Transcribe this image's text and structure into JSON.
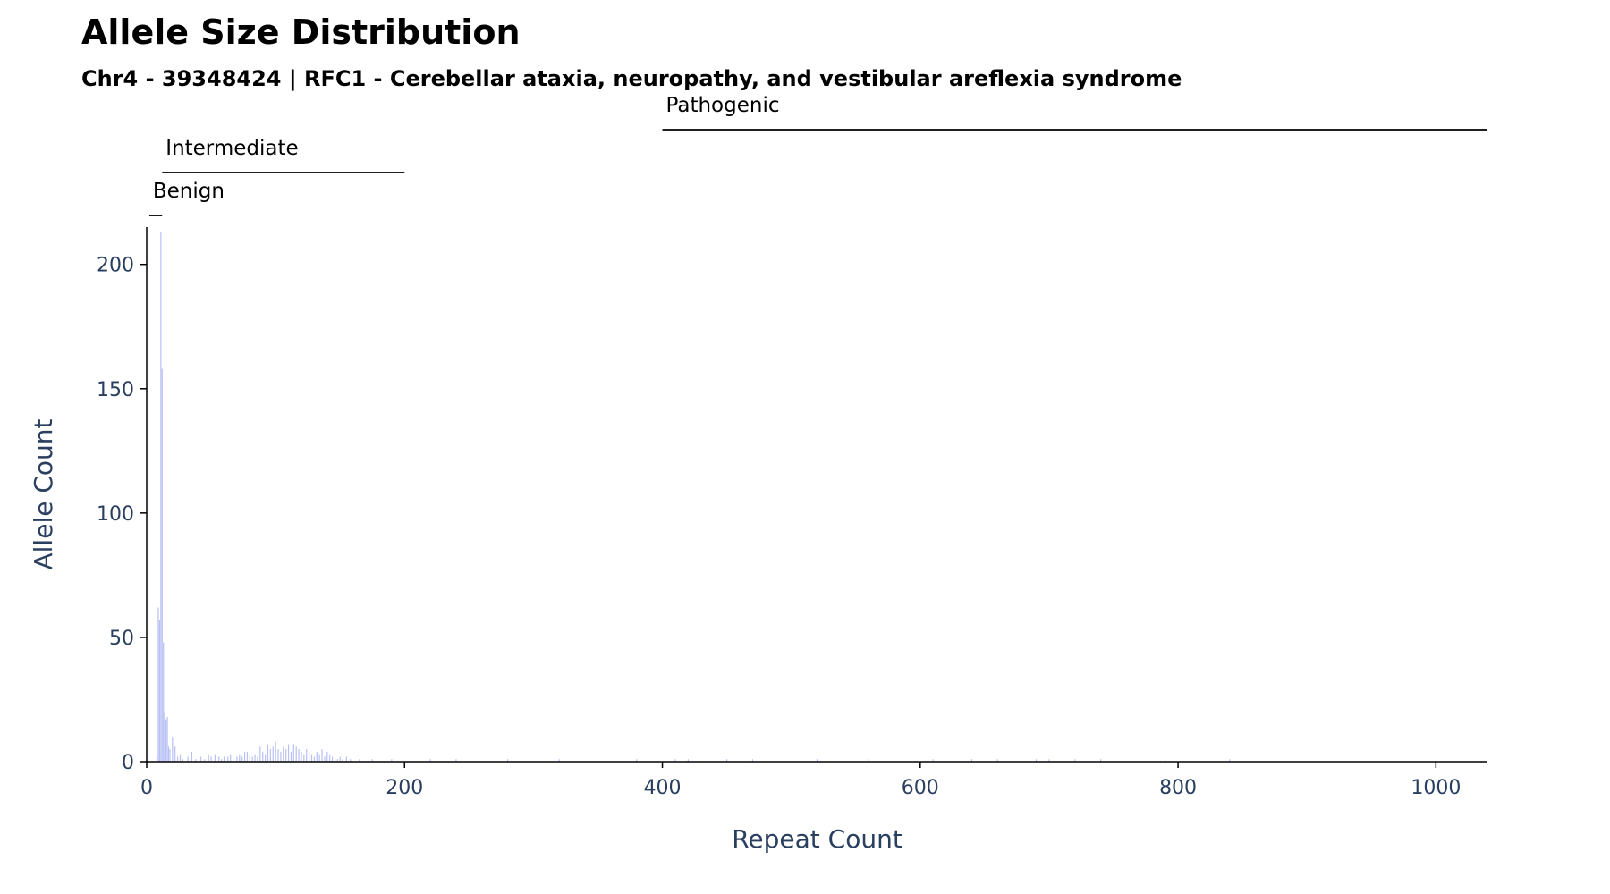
{
  "chart_data": {
    "type": "bar",
    "title": "Allele Size Distribution",
    "subtitle": "Chr4 - 39348424 | RFC1 - Cerebellar ataxia, neuropathy, and vestibular areflexia syndrome",
    "xlabel": "Repeat Count",
    "ylabel": "Allele Count",
    "xlim": [
      0,
      1040
    ],
    "ylim": [
      0,
      215
    ],
    "xticks": [
      0,
      200,
      400,
      600,
      800,
      1000
    ],
    "yticks": [
      0,
      50,
      100,
      150,
      200
    ],
    "bar_color": "#b9c0f5",
    "axis_color": "#000000",
    "tick_label_color": "#2a3f5f",
    "ranges": [
      {
        "label": "Benign",
        "start": 2,
        "end": 12
      },
      {
        "label": "Intermediate",
        "start": 12,
        "end": 200
      },
      {
        "label": "Pathogenic",
        "start": 400,
        "end": 1040
      }
    ],
    "x": [
      8,
      9,
      10,
      11,
      12,
      13,
      14,
      15,
      16,
      17,
      18,
      20,
      22,
      24,
      26,
      28,
      32,
      35,
      38,
      42,
      45,
      48,
      50,
      53,
      56,
      58,
      60,
      63,
      65,
      67,
      70,
      72,
      74,
      76,
      78,
      80,
      82,
      84,
      86,
      88,
      90,
      92,
      94,
      96,
      98,
      100,
      102,
      104,
      106,
      108,
      110,
      112,
      114,
      116,
      118,
      120,
      122,
      124,
      126,
      128,
      130,
      132,
      134,
      136,
      138,
      140,
      142,
      144,
      146,
      148,
      150,
      152,
      155,
      158,
      165,
      175,
      190,
      220,
      240,
      280,
      320,
      380,
      410,
      420,
      450,
      470,
      520,
      560,
      610,
      640,
      660,
      690,
      700,
      720,
      740,
      790,
      840
    ],
    "values": [
      2,
      62,
      57,
      213,
      158,
      48,
      20,
      17,
      18,
      6,
      5,
      10,
      6,
      2,
      3,
      1,
      2,
      4,
      1,
      2,
      1,
      3,
      2,
      3,
      2,
      1,
      2,
      2,
      3,
      1,
      2,
      3,
      2,
      4,
      4,
      3,
      2,
      3,
      2,
      6,
      4,
      3,
      7,
      5,
      6,
      8,
      5,
      4,
      6,
      5,
      7,
      4,
      7,
      6,
      5,
      4,
      3,
      5,
      4,
      3,
      2,
      4,
      3,
      5,
      2,
      4,
      3,
      2,
      1,
      1,
      2,
      1,
      2,
      1,
      1,
      1,
      1,
      1,
      1,
      1,
      1,
      1,
      1,
      1,
      1,
      1,
      1,
      1,
      1,
      1,
      1,
      1,
      1,
      1,
      1,
      1,
      1
    ]
  }
}
